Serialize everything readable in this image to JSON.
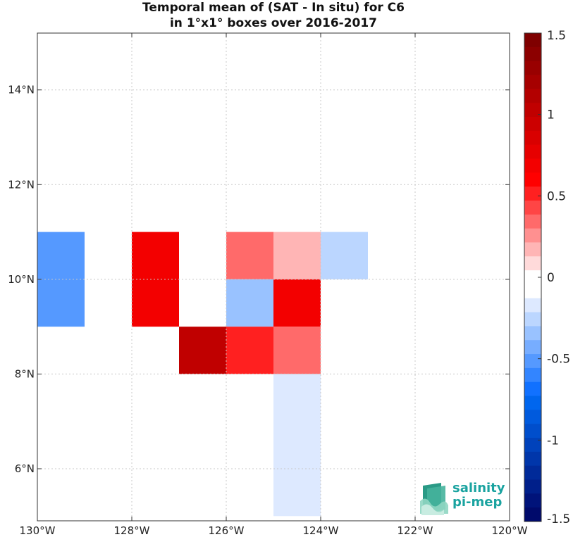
{
  "chart_data": {
    "type": "heatmap",
    "title": "Temporal mean of (SAT - In situ) for C6",
    "subtitle": "in 1°x1° boxes over 2016-2017",
    "xlim": [
      -130,
      -120
    ],
    "ylim": [
      4.9,
      15.2
    ],
    "x_ticks": [
      {
        "value": -130,
        "label": "130°W"
      },
      {
        "value": -128,
        "label": "128°W"
      },
      {
        "value": -126,
        "label": "126°W"
      },
      {
        "value": -124,
        "label": "124°W"
      },
      {
        "value": -122,
        "label": "122°W"
      },
      {
        "value": -120,
        "label": "120°W"
      }
    ],
    "y_ticks": [
      {
        "value": 6,
        "label": "6°N"
      },
      {
        "value": 8,
        "label": "8°N"
      },
      {
        "value": 10,
        "label": "10°N"
      },
      {
        "value": 12,
        "label": "12°N"
      },
      {
        "value": 14,
        "label": "14°N"
      }
    ],
    "grid": true,
    "cells": [
      {
        "lon0": -130,
        "lon1": -129,
        "lat0": 9,
        "lat1": 11,
        "value": -0.55
      },
      {
        "lon0": -128,
        "lon1": -127,
        "lat0": 9,
        "lat1": 11,
        "value": 0.7
      },
      {
        "lon0": -127,
        "lon1": -126,
        "lat0": 8,
        "lat1": 9,
        "value": 1.05
      },
      {
        "lon0": -126,
        "lon1": -125,
        "lat0": 10,
        "lat1": 11,
        "value": 0.3
      },
      {
        "lon0": -126,
        "lon1": -125,
        "lat0": 9,
        "lat1": 10,
        "value": -0.35
      },
      {
        "lon0": -126,
        "lon1": -125,
        "lat0": 8,
        "lat1": 9,
        "value": 0.5
      },
      {
        "lon0": -125,
        "lon1": -124,
        "lat0": 10,
        "lat1": 11,
        "value": 0.15
      },
      {
        "lon0": -125,
        "lon1": -124,
        "lat0": 9,
        "lat1": 10,
        "value": 0.7
      },
      {
        "lon0": -125,
        "lon1": -124,
        "lat0": 8,
        "lat1": 9,
        "value": 0.3
      },
      {
        "lon0": -125,
        "lon1": -124,
        "lat0": 5,
        "lat1": 8,
        "value": -0.15
      },
      {
        "lon0": -124,
        "lon1": -123,
        "lat0": 10,
        "lat1": 11,
        "value": -0.25
      }
    ],
    "colorbar": {
      "range": [
        -1.5,
        1.5
      ],
      "ticks": [
        {
          "value": 1.5,
          "label": "1.5"
        },
        {
          "value": 1,
          "label": "1"
        },
        {
          "value": 0.5,
          "label": "0.5"
        },
        {
          "value": 0,
          "label": "0"
        },
        {
          "value": -0.5,
          "label": "-0.5"
        },
        {
          "value": -1,
          "label": "-1"
        },
        {
          "value": -1.5,
          "label": "-1.5"
        }
      ],
      "colors_top_to_bottom": [
        "#7f0000",
        "#8c0000",
        "#990000",
        "#a60000",
        "#b30000",
        "#c00000",
        "#cc0000",
        "#d90000",
        "#e60000",
        "#f30000",
        "#ff0000",
        "#ff2020",
        "#ff4545",
        "#ff6a6a",
        "#ff9090",
        "#ffb5b5",
        "#ffdada",
        "#ffffff",
        "#ffffff",
        "#dde9ff",
        "#bbd6ff",
        "#99c2ff",
        "#77adff",
        "#5599ff",
        "#3385ff",
        "#1171ff",
        "#0066ee",
        "#005add",
        "#004ecc",
        "#0042bb",
        "#0036aa",
        "#002a99",
        "#001f8a",
        "#00137a",
        "#000a6b"
      ]
    }
  },
  "logo": {
    "line1": "salinity",
    "line2": "pi-mep",
    "accent": "#1aa3a0"
  }
}
